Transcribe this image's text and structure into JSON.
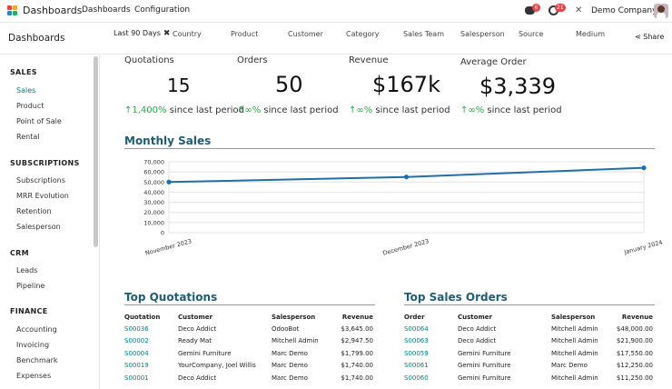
{
  "navbar": {
    "app_title": "Dashboards",
    "menu": [
      "Dashboards",
      "Configuration"
    ],
    "chat_badge": "6",
    "activity_badge": "21",
    "company": "Demo Company",
    "accent_color": "#017e84",
    "icons": [
      "apps-icon",
      "chat-icon",
      "clock-icon",
      "tools-icon",
      "avatar"
    ]
  },
  "control_panel": {
    "breadcrumb": "Dashboards",
    "active_facet": "Last 90 Days",
    "facet_remove": "✖",
    "filters": [
      "Country",
      "Product",
      "Customer",
      "Category",
      "Sales Team",
      "Salesperson",
      "Source",
      "Medium"
    ],
    "share_label": "Share"
  },
  "sidebar": {
    "groups": [
      {
        "title": "SALES",
        "items": [
          "Sales",
          "Product",
          "Point of Sale",
          "Rental"
        ]
      },
      {
        "title": "SUBSCRIPTIONS",
        "items": [
          "Subscriptions",
          "MRR Evolution",
          "Retention",
          "Salesperson"
        ]
      },
      {
        "title": "CRM",
        "items": [
          "Leads",
          "Pipeline"
        ]
      },
      {
        "title": "FINANCE",
        "items": [
          "Accounting",
          "Invoicing",
          "Benchmark",
          "Expenses"
        ]
      }
    ],
    "active_item": "Sales"
  },
  "kpis": [
    {
      "title": "Quotations",
      "value": "15",
      "arrow": "↑",
      "change": "1,400%",
      "suffix": "since last period"
    },
    {
      "title": "Orders",
      "value": "50",
      "arrow": "↑",
      "change": "∞%",
      "suffix": "since last period"
    },
    {
      "title": "Revenue",
      "value": "$167k",
      "arrow": "↑",
      "change": "∞%",
      "suffix": "since last period"
    },
    {
      "title": "Average Order",
      "value": "$3,339",
      "arrow": "↑",
      "change": "∞%",
      "suffix": "since last period"
    }
  ],
  "monthly_sales": {
    "title": "Monthly Sales"
  },
  "chart_data": {
    "type": "line",
    "title": "Monthly Sales",
    "categories": [
      "November 2023",
      "December 2023",
      "January 2024"
    ],
    "series": [
      {
        "values": [
          50000,
          55000,
          64000
        ]
      }
    ],
    "ylim": [
      0,
      70000
    ],
    "yticks": [
      "0",
      "10,000",
      "20,000",
      "30,000",
      "40,000",
      "50,000",
      "60,000",
      "70,000"
    ],
    "grid": true,
    "line_color": "#1f6fa8"
  },
  "top_quotations": {
    "title": "Top Quotations",
    "columns": [
      "Quotation",
      "Customer",
      "Salesperson",
      "Revenue"
    ],
    "rows": [
      [
        "S00036",
        "Deco Addict",
        "OdooBot",
        "$3,645.00"
      ],
      [
        "S00002",
        "Ready Mat",
        "Mitchell Admin",
        "$2,947.50"
      ],
      [
        "S00004",
        "Gemini Furniture",
        "Marc Demo",
        "$1,799.00"
      ],
      [
        "S00019",
        "YourCompany, Joel Willis",
        "Marc Demo",
        "$1,740.00"
      ],
      [
        "S00001",
        "Deco Addict",
        "Marc Demo",
        "$1,740.00"
      ]
    ]
  },
  "top_sales_orders": {
    "title": "Top Sales Orders",
    "columns": [
      "Order",
      "Customer",
      "Salesperson",
      "Revenue"
    ],
    "rows": [
      [
        "S00064",
        "Deco Addict",
        "Mitchell Admin",
        "$48,000.00"
      ],
      [
        "S00063",
        "Deco Addict",
        "Mitchell Admin",
        "$21,900.00"
      ],
      [
        "S00059",
        "Gemini Furniture",
        "Mitchell Admin",
        "$17,550.00"
      ],
      [
        "S00061",
        "Gemini Furniture",
        "Marc Demo",
        "$12,250.00"
      ],
      [
        "S00060",
        "Gemini Furniture",
        "Mitchell Admin",
        "$11,250.00"
      ]
    ]
  }
}
